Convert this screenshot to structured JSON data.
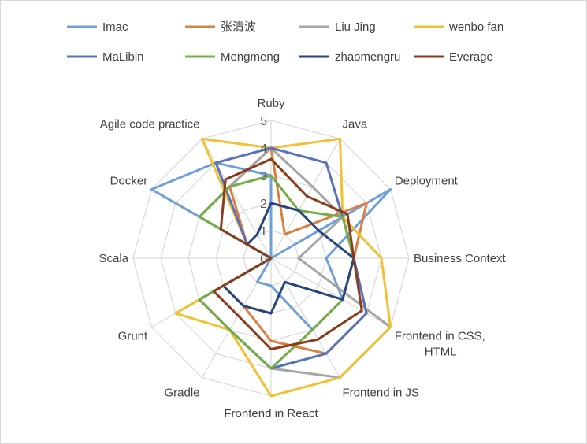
{
  "chart_data": {
    "type": "radar",
    "title": "",
    "categories": [
      [
        "Ruby"
      ],
      [
        "Java"
      ],
      [
        "Deployment"
      ],
      [
        "Business Context"
      ],
      [
        "Frontend in CSS,",
        "HTML"
      ],
      [
        "Frontend in JS"
      ],
      [
        "Frontend in React"
      ],
      [
        "Gradle"
      ],
      [
        "Grunt"
      ],
      [
        "Scala"
      ],
      [
        "Docker"
      ],
      [
        "Agile code practice"
      ]
    ],
    "rlim": [
      0,
      5
    ],
    "ticks": [
      "0",
      "1",
      "2",
      "3",
      "4",
      "5"
    ],
    "grid": true,
    "legend_position": "top",
    "series": [
      {
        "name": "Imac",
        "color": "#6f9fd8",
        "values": [
          3,
          0,
          5,
          2,
          3,
          3,
          1,
          1,
          0,
          0,
          5,
          4
        ]
      },
      {
        "name": "张清波",
        "color": "#dd7f43",
        "values": [
          4,
          1,
          4,
          3,
          4,
          4,
          3,
          2,
          2,
          0,
          1,
          3
        ]
      },
      {
        "name": "Liu Jing",
        "color": "#a5a5a5",
        "values": [
          4,
          3,
          3,
          1,
          5,
          5,
          4,
          3,
          3,
          0,
          3,
          3
        ]
      },
      {
        "name": "wenbo fan",
        "color": "#f2c033",
        "values": [
          4,
          5,
          3,
          4,
          5,
          5,
          5,
          3,
          4,
          0,
          1,
          5
        ]
      },
      {
        "name": "MaLibin",
        "color": "#5870be",
        "values": [
          4,
          4,
          3,
          3,
          4,
          4,
          4,
          3,
          3,
          0,
          1,
          4
        ]
      },
      {
        "name": "Mengmeng",
        "color": "#73ad47",
        "values": [
          3,
          2,
          3,
          3,
          3,
          3,
          4,
          3,
          3,
          0,
          3,
          3
        ]
      },
      {
        "name": "zhaomengru",
        "color": "#26457c",
        "values": [
          2,
          2,
          2,
          3,
          3,
          1,
          2,
          2,
          2,
          0,
          1,
          1
        ]
      },
      {
        "name": "Everage",
        "color": "#8a3d1c",
        "values": [
          3.6,
          2.6,
          3.2,
          3.0,
          3.8,
          3.4,
          3.3,
          2.4,
          2.4,
          0.0,
          2.1,
          3.3
        ]
      }
    ]
  }
}
